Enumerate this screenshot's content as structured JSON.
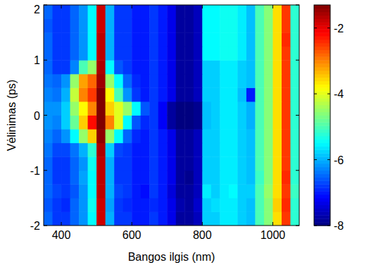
{
  "chart_data": {
    "type": "heatmap",
    "x_label": "Bangos ilgis (nm)",
    "y_label": "Vėlinimas (ps)",
    "xlim": [
      350,
      1075
    ],
    "xticks": [
      400,
      600,
      800,
      1000
    ],
    "ylim": [
      -2,
      2
    ],
    "yticks": [
      -2,
      -1,
      0,
      1,
      2
    ],
    "colorbar_lim": [
      -8,
      -1.3
    ],
    "colorbar_ticks": [
      -2,
      -4,
      -6,
      -8
    ],
    "x": [
      362.5,
      387.5,
      412.5,
      437.5,
      462.5,
      487.5,
      512.5,
      537.5,
      562.5,
      587.5,
      612.5,
      637.5,
      662.5,
      687.5,
      712.5,
      737.5,
      762.5,
      787.5,
      812.5,
      837.5,
      862.5,
      887.5,
      912.5,
      937.5,
      962.5,
      987.5,
      1012.5,
      1037.5,
      1062.5
    ],
    "y": [
      -1.875,
      -1.625,
      -1.375,
      -1.125,
      -0.875,
      -0.625,
      -0.375,
      -0.125,
      0.125,
      0.375,
      0.625,
      0.875,
      1.125,
      1.375,
      1.625,
      1.875
    ],
    "values": [
      [
        -6.5,
        -6.8,
        -6.8,
        -6.5,
        -6.2,
        -5.5,
        -1.8,
        -6.0,
        -6.8,
        -6.8,
        -7.0,
        -7.0,
        -6.8,
        -7.0,
        -7.3,
        -7.8,
        -7.8,
        -7.6,
        -5.8,
        -5.8,
        -5.6,
        -5.6,
        -5.8,
        -5.9,
        -5.0,
        -4.6,
        -3.6,
        -2.5,
        -5.2
      ],
      [
        -6.6,
        -6.8,
        -6.9,
        -6.5,
        -6.2,
        -5.4,
        -1.8,
        -6.1,
        -6.8,
        -6.9,
        -7.0,
        -7.0,
        -6.9,
        -7.0,
        -7.3,
        -7.7,
        -7.8,
        -7.5,
        -5.8,
        -5.7,
        -5.6,
        -5.6,
        -5.8,
        -5.9,
        -5.0,
        -4.6,
        -3.5,
        -2.4,
        -5.2
      ],
      [
        -6.5,
        -6.7,
        -6.8,
        -6.6,
        -6.2,
        -5.5,
        -1.7,
        -6.0,
        -6.7,
        -6.8,
        -7.0,
        -7.1,
        -6.8,
        -7.0,
        -7.4,
        -7.8,
        -7.8,
        -7.6,
        -5.6,
        -5.8,
        -5.6,
        -5.5,
        -5.8,
        -5.8,
        -5.0,
        -4.5,
        -3.6,
        -2.5,
        -5.1
      ],
      [
        -6.5,
        -6.8,
        -6.8,
        -6.5,
        -6.1,
        -5.5,
        -1.7,
        -6.0,
        -6.8,
        -6.8,
        -7.0,
        -7.0,
        -6.8,
        -7.0,
        -7.3,
        -7.8,
        -7.9,
        -7.6,
        -5.8,
        -5.8,
        -5.6,
        -5.6,
        -5.8,
        -5.9,
        -5.1,
        -4.6,
        -3.6,
        -2.4,
        -5.2
      ],
      [
        -6.5,
        -6.8,
        -6.8,
        -6.5,
        -6.2,
        -5.4,
        -1.7,
        -6.0,
        -6.8,
        -6.8,
        -7.0,
        -7.0,
        -6.8,
        -7.0,
        -7.3,
        -7.8,
        -7.8,
        -7.6,
        -5.8,
        -5.8,
        -5.6,
        -5.6,
        -5.8,
        -5.9,
        -5.0,
        -4.6,
        -3.6,
        -2.5,
        -5.2
      ],
      [
        -6.4,
        -6.7,
        -6.7,
        -6.4,
        -6.0,
        -5.2,
        -1.6,
        -5.8,
        -6.7,
        -6.8,
        -7.0,
        -7.0,
        -6.8,
        -7.0,
        -7.3,
        -7.8,
        -7.8,
        -7.6,
        -5.8,
        -5.8,
        -5.6,
        -5.6,
        -5.8,
        -5.9,
        -5.0,
        -4.6,
        -3.6,
        -2.5,
        -5.2
      ],
      [
        -6.3,
        -6.5,
        -6.2,
        -5.5,
        -4.5,
        -3.5,
        -1.4,
        -4.5,
        -5.5,
        -6.5,
        -6.9,
        -7.0,
        -6.8,
        -7.0,
        -7.3,
        -7.8,
        -7.8,
        -7.6,
        -5.8,
        -5.8,
        -5.6,
        -5.6,
        -5.8,
        -5.9,
        -5.0,
        -4.6,
        -3.6,
        -2.5,
        -5.2
      ],
      [
        -6.2,
        -6.3,
        -5.8,
        -4.8,
        -3.5,
        -2.2,
        -1.3,
        -3.0,
        -4.0,
        -5.5,
        -6.6,
        -6.9,
        -6.8,
        -7.2,
        -7.8,
        -8.0,
        -8.0,
        -7.9,
        -5.9,
        -5.8,
        -5.6,
        -5.6,
        -5.8,
        -6.0,
        -5.0,
        -4.6,
        -3.6,
        -2.5,
        -5.2
      ],
      [
        -6.2,
        -6.2,
        -5.8,
        -4.5,
        -3.8,
        -3.0,
        -1.3,
        -3.5,
        -4.0,
        -4.5,
        -5.5,
        -6.6,
        -6.8,
        -7.2,
        -7.8,
        -8.0,
        -8.0,
        -7.9,
        -5.9,
        -5.8,
        -5.6,
        -5.6,
        -5.8,
        -6.0,
        -5.0,
        -4.6,
        -3.6,
        -2.5,
        -5.2
      ],
      [
        -6.3,
        -6.4,
        -6.0,
        -4.2,
        -3.0,
        -2.5,
        -1.3,
        -3.8,
        -5.0,
        -6.2,
        -6.8,
        -7.0,
        -6.8,
        -7.0,
        -7.3,
        -7.8,
        -7.8,
        -7.6,
        -5.8,
        -5.8,
        -5.6,
        -5.6,
        -5.9,
        -7.0,
        -5.0,
        -4.6,
        -3.6,
        -2.5,
        -5.2
      ],
      [
        -6.4,
        -6.5,
        -6.2,
        -4.5,
        -3.2,
        -2.8,
        -1.5,
        -4.5,
        -5.5,
        -6.5,
        -6.9,
        -7.0,
        -6.8,
        -7.0,
        -7.3,
        -7.8,
        -7.8,
        -7.6,
        -5.8,
        -5.8,
        -5.6,
        -5.6,
        -5.8,
        -5.9,
        -5.0,
        -4.6,
        -3.6,
        -2.5,
        -5.2
      ],
      [
        -6.5,
        -6.8,
        -6.8,
        -6.3,
        -5.0,
        -4.5,
        -1.6,
        -5.5,
        -6.6,
        -6.8,
        -7.0,
        -7.0,
        -6.8,
        -7.0,
        -7.3,
        -7.8,
        -7.8,
        -7.6,
        -5.8,
        -5.8,
        -5.6,
        -5.6,
        -5.8,
        -5.9,
        -5.0,
        -4.6,
        -3.6,
        -2.5,
        -5.2
      ],
      [
        -6.5,
        -6.8,
        -6.8,
        -6.5,
        -6.2,
        -5.5,
        -1.7,
        -6.0,
        -6.8,
        -6.8,
        -7.0,
        -7.0,
        -6.8,
        -7.0,
        -7.3,
        -7.8,
        -7.8,
        -7.6,
        -5.5,
        -5.5,
        -5.4,
        -5.4,
        -5.6,
        -5.9,
        -5.0,
        -4.6,
        -3.6,
        -2.5,
        -5.2
      ],
      [
        -6.5,
        -6.8,
        -6.8,
        -6.5,
        -6.2,
        -5.5,
        -1.7,
        -6.0,
        -6.8,
        -6.8,
        -7.0,
        -7.0,
        -6.8,
        -7.0,
        -7.3,
        -7.8,
        -7.8,
        -7.6,
        -5.5,
        -5.5,
        -5.4,
        -5.4,
        -5.6,
        -5.9,
        -5.0,
        -4.6,
        -3.6,
        -2.4,
        -5.2
      ],
      [
        -6.6,
        -6.8,
        -6.8,
        -6.5,
        -6.2,
        -5.5,
        -1.8,
        -6.0,
        -6.8,
        -6.8,
        -7.0,
        -7.0,
        -6.8,
        -7.0,
        -7.3,
        -7.8,
        -7.8,
        -7.6,
        -5.5,
        -5.5,
        -5.4,
        -5.4,
        -5.6,
        -5.9,
        -5.0,
        -4.6,
        -3.6,
        -2.5,
        -5.2
      ],
      [
        -6.5,
        -6.8,
        -6.8,
        -6.5,
        -6.2,
        -5.5,
        -1.8,
        -6.0,
        -6.8,
        -6.8,
        -7.0,
        -7.0,
        -6.8,
        -7.0,
        -7.3,
        -7.8,
        -7.8,
        -7.6,
        -5.5,
        -5.5,
        -5.4,
        -5.4,
        -5.6,
        -5.9,
        -5.0,
        -4.6,
        -3.6,
        -2.5,
        -5.2
      ]
    ]
  }
}
